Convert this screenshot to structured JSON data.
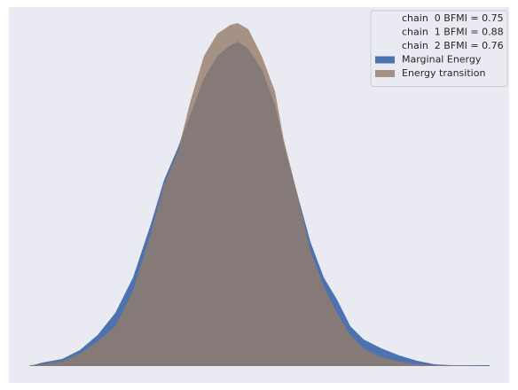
{
  "chart_data": {
    "type": "area",
    "x": [
      33,
      48,
      70,
      90,
      110,
      130,
      150,
      170,
      185,
      200,
      215,
      230,
      245,
      260,
      268,
      280,
      295,
      310,
      320,
      335,
      350,
      365,
      380,
      395,
      410,
      430,
      450,
      470,
      490,
      510,
      552
    ],
    "series": [
      {
        "name": "Marginal Energy",
        "color": "#4c72b0",
        "opacity": 1,
        "values": [
          0,
          4,
          8,
          18,
          35,
          60,
          100,
          160,
          210,
          245,
          285,
          325,
          350,
          362,
          366,
          358,
          335,
          295,
          250,
          195,
          140,
          100,
          75,
          45,
          30,
          20,
          12,
          6,
          2,
          1,
          1
        ]
      },
      {
        "name": "Energy transition",
        "color": "#937c69",
        "opacity": 0.8,
        "values": [
          1,
          2,
          5,
          14,
          28,
          45,
          85,
          150,
          205,
          240,
          300,
          350,
          375,
          385,
          387,
          380,
          350,
          310,
          255,
          195,
          130,
          90,
          60,
          35,
          20,
          10,
          5,
          2,
          1,
          1,
          0
        ]
      }
    ],
    "legend_notes": [
      "chain  0 BFMI = 0.75",
      "chain  1 BFMI = 0.88",
      "chain  2 BFMI = 0.76"
    ],
    "legend": "upper right",
    "xlim": [
      10,
      574
    ],
    "ylim": [
      0,
      400
    ]
  }
}
